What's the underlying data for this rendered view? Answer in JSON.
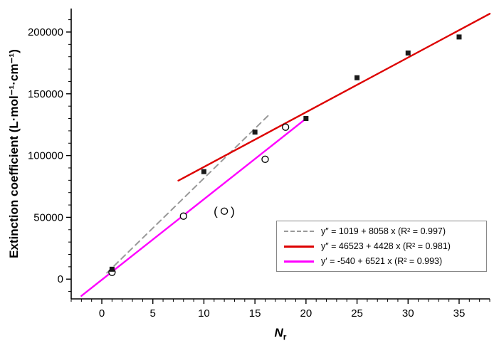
{
  "chart_data": {
    "type": "scatter",
    "title": "",
    "xlabel": {
      "main": "N",
      "sub": "r"
    },
    "ylabel": "Extinction coefficient (L·mol⁻¹·cm⁻¹)",
    "xlim": [
      -3,
      38
    ],
    "ylim": [
      -16000,
      219000
    ],
    "xticks": [
      0,
      5,
      10,
      15,
      20,
      25,
      30,
      35
    ],
    "yticks": [
      0,
      50000,
      100000,
      150000,
      200000
    ],
    "xtick_minor_step": 1,
    "ytick_minor_step": 10000,
    "grid": false,
    "series": [
      {
        "name": "filled-squares",
        "marker": "square",
        "color": "#1a1a1a",
        "points": [
          [
            1,
            8000
          ],
          [
            10,
            87000
          ],
          [
            15,
            119000
          ],
          [
            20,
            130000
          ],
          [
            25,
            163000
          ],
          [
            30,
            183000
          ],
          [
            35,
            196000
          ]
        ]
      },
      {
        "name": "open-circles",
        "marker": "circle",
        "color": "#000000",
        "points": [
          [
            1,
            5500
          ],
          [
            8,
            51000
          ],
          [
            16,
            97000
          ],
          [
            18,
            123000
          ]
        ]
      }
    ],
    "lines": [
      {
        "name": "fit-dashed-gray",
        "intercept": 1019,
        "slope": 8058,
        "r2": 0.997,
        "color": "#999999",
        "style": "dashed",
        "x1": 0.5,
        "x2": 16.5
      },
      {
        "name": "fit-solid-red",
        "intercept": 46523,
        "slope": 4428,
        "r2": 0.981,
        "color": "#dd0000",
        "style": "solid",
        "x1": 7.5,
        "x2": 38
      },
      {
        "name": "fit-solid-magenta",
        "intercept": -540,
        "slope": 6521,
        "r2": 0.993,
        "color": "#ff00ff",
        "style": "solid",
        "x1": -2,
        "x2": 20
      }
    ],
    "annotation": {
      "x": 12,
      "y": 55000,
      "text": "(○)"
    },
    "legend": {
      "position": "bottom-right",
      "entries": [
        {
          "label": "y″ = 1019 + 8058 x (R² = 0.997)",
          "color": "#999999",
          "style": "dashed"
        },
        {
          "label": "y″ = 46523 + 4428 x (R² = 0.981)",
          "color": "#dd0000",
          "style": "solid"
        },
        {
          "label": "y′ = -540 + 6521 x (R² = 0.993)",
          "color": "#ff00ff",
          "style": "solid"
        }
      ]
    }
  }
}
